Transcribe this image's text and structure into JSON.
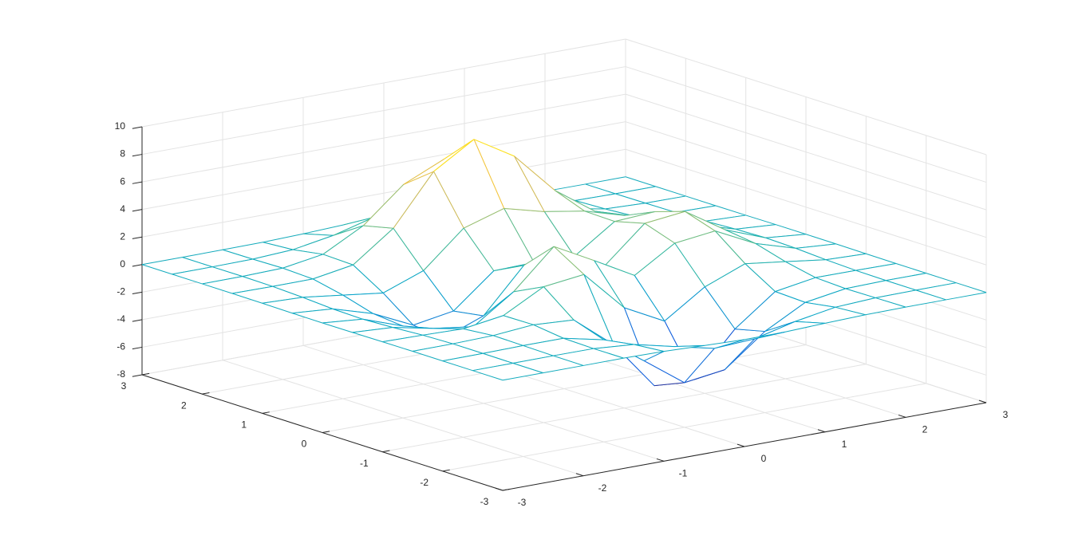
{
  "chart_data": {
    "type": "mesh",
    "x": [
      -3,
      -2.5,
      -2,
      -1.5,
      -1,
      -0.5,
      0,
      0.5,
      1,
      1.5,
      2,
      2.5,
      3
    ],
    "y": [
      -3,
      -2.5,
      -2,
      -1.5,
      -1,
      -0.5,
      0,
      0.5,
      1,
      1.5,
      2,
      2.5,
      3
    ],
    "z": [
      [
        0,
        0,
        0,
        0.01,
        -0.03,
        -0.14,
        -0.24,
        -0.22,
        -0.11,
        -0.03,
        0,
        0,
        0
      ],
      [
        0,
        0,
        0.01,
        0,
        -0.23,
        -0.91,
        -1.57,
        -1.41,
        -0.69,
        -0.18,
        -0.03,
        0,
        0
      ],
      [
        0,
        0.01,
        0.05,
        0.05,
        -0.59,
        -2.64,
        -4.76,
        -4.35,
        -2.1,
        -0.53,
        -0.06,
        0,
        0
      ],
      [
        0,
        0.01,
        0.08,
        0.33,
        0.15,
        -2.19,
        -5.68,
        -5.76,
        -2.63,
        -0.44,
        0.04,
        0.03,
        0
      ],
      [
        -0.01,
        -0.06,
        -0.13,
        0.3,
        1.86,
        2.22,
        -0.72,
        -2.22,
        -0.27,
        0.88,
        0.5,
        0.11,
        0.01
      ],
      [
        -0.03,
        -0.2,
        -0.8,
        -1.21,
        0.8,
        3.55,
        2,
        0.39,
        2.2,
        2.56,
        1.12,
        0.24,
        0.03
      ],
      [
        -0.04,
        -0.3,
        -1.33,
        -2.77,
        -1.65,
        1.48,
        0.98,
        0.37,
        2.94,
        3.27,
        1.41,
        0.3,
        0.03
      ],
      [
        -0.03,
        -0.25,
        -1.12,
        -2.49,
        -2,
        0.39,
        0.46,
        0.38,
        2.38,
        2.56,
        1.09,
        0.23,
        0.03
      ],
      [
        -0.01,
        -0.11,
        -0.48,
        -0.86,
        0.23,
        2.79,
        3.69,
        2.93,
        2.43,
        1.58,
        0.58,
        0.11,
        0.01
      ],
      [
        0,
        -0.02,
        -0.01,
        0.48,
        2.61,
        6.2,
        8,
        6.25,
        3.25,
        1.19,
        0.29,
        0.05,
        0
      ],
      [
        0,
        0.01,
        0.08,
        0.55,
        2.1,
        4.56,
        5.86,
        4.57,
        2.21,
        0.68,
        0.13,
        0.02,
        0
      ],
      [
        0,
        0,
        0.03,
        0.19,
        0.69,
        1.47,
        1.88,
        1.47,
        0.7,
        0.2,
        0.04,
        0,
        0
      ],
      [
        0,
        0,
        0.01,
        0.03,
        0.11,
        0.23,
        0.3,
        0.23,
        0.11,
        0.03,
        0.01,
        0,
        0
      ]
    ],
    "xlim": [
      -3,
      3
    ],
    "ylim": [
      -3,
      3
    ],
    "zlim": [
      -8,
      10
    ],
    "xticks": [
      -3,
      -2,
      -1,
      0,
      1,
      2,
      3
    ],
    "yticks": [
      -3,
      -2,
      -1,
      0,
      1,
      2,
      3
    ],
    "zticks": [
      -8,
      -6,
      -4,
      -2,
      0,
      2,
      4,
      6,
      8,
      10
    ],
    "grid": true,
    "colormap": [
      "#352a87",
      "#0f5cdd",
      "#1481d6",
      "#06a4ca",
      "#2eb7a4",
      "#87bf77",
      "#d1bb59",
      "#fec832",
      "#f9fb0e"
    ]
  }
}
